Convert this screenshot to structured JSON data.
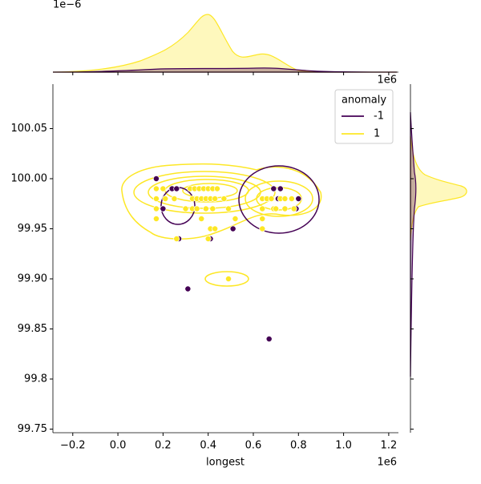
{
  "chart_data": {
    "type": "scatter",
    "xlabel": "longest",
    "x_offset_label": "1e6",
    "y_offset_label": "1e6",
    "marginal_offset_label": "1e−6",
    "legend_title": "anomaly",
    "legend_loc": "upper right",
    "xlim": [
      -0.288,
      1.243
    ],
    "xticks": [
      {
        "value": -0.2,
        "label": "−0.2"
      },
      {
        "value": 0,
        "label": "0.0"
      },
      0.2,
      0.4,
      0.6,
      0.8,
      {
        "value": 1,
        "label": "1.0"
      },
      1.2
    ],
    "ylim": [
      99.7464,
      100.0944
    ],
    "yticks": [
      100.05,
      {
        "value": 100,
        "label": "100.00"
      },
      99.95,
      {
        "value": 99.9,
        "label": "99.90"
      },
      99.85,
      99.8,
      99.75
    ],
    "series": [
      {
        "name": "-1",
        "color": "#440154",
        "x": [
          0.17,
          0.2,
          0.24,
          0.26,
          0.27,
          0.31,
          0.41,
          0.51,
          0.67,
          0.69,
          0.72,
          0.71,
          0.79,
          0.8
        ],
        "y": [
          100.0,
          99.97,
          99.99,
          99.99,
          99.94,
          99.89,
          99.94,
          99.95,
          99.84,
          99.99,
          99.99,
          99.98,
          99.97,
          99.98
        ]
      },
      {
        "name": "1",
        "color": "#fde725",
        "x": [
          0.17,
          0.17,
          0.17,
          0.17,
          0.2,
          0.21,
          0.25,
          0.26,
          0.3,
          0.32,
          0.33,
          0.33,
          0.34,
          0.35,
          0.35,
          0.36,
          0.37,
          0.37,
          0.38,
          0.39,
          0.39,
          0.4,
          0.4,
          0.41,
          0.41,
          0.42,
          0.42,
          0.43,
          0.43,
          0.44,
          0.47,
          0.49,
          0.49,
          0.52,
          0.64,
          0.64,
          0.64,
          0.64,
          0.66,
          0.68,
          0.69,
          0.7,
          0.72,
          0.74,
          0.74,
          0.77,
          0.78
        ],
        "y": [
          99.99,
          99.98,
          99.97,
          99.96,
          99.99,
          99.98,
          99.98,
          99.94,
          99.97,
          99.99,
          99.97,
          99.98,
          99.99,
          99.98,
          99.97,
          99.99,
          99.98,
          99.96,
          99.99,
          99.98,
          99.97,
          99.94,
          99.99,
          99.98,
          99.95,
          99.99,
          99.97,
          99.98,
          99.95,
          99.99,
          99.98,
          99.9,
          99.97,
          99.96,
          99.98,
          99.97,
          99.96,
          99.95,
          99.98,
          99.98,
          99.97,
          99.97,
          99.98,
          99.98,
          99.97,
          99.98,
          99.97
        ]
      }
    ]
  }
}
